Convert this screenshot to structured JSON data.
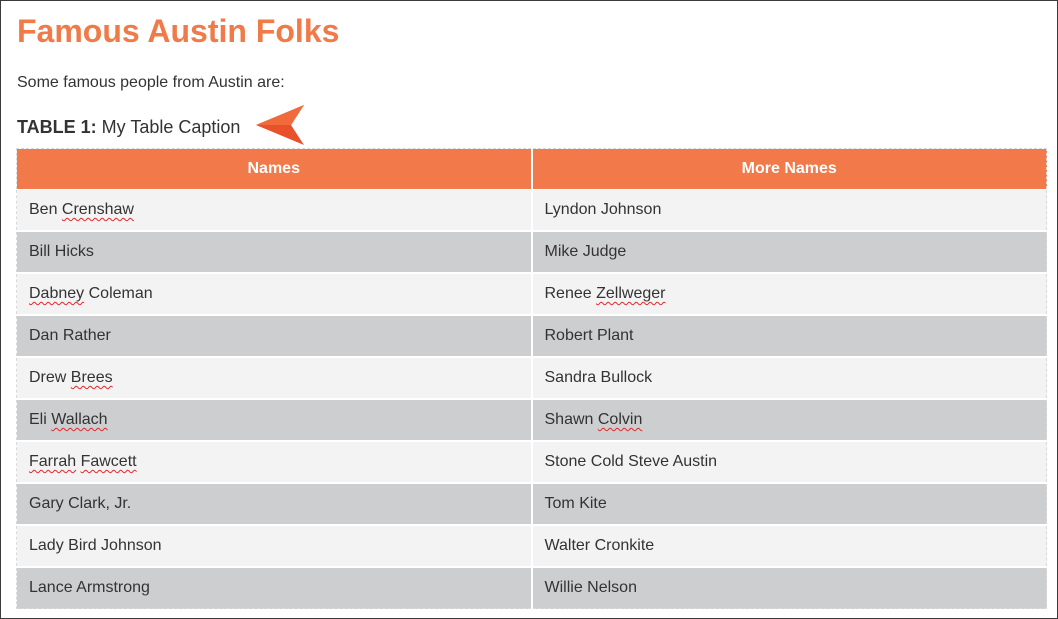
{
  "page": {
    "title": "Famous Austin Folks",
    "intro": "Some famous people from Austin are:"
  },
  "caption": {
    "label": "TABLE 1:",
    "text": "My Table Caption"
  },
  "colors": {
    "title": "#f07a48",
    "header_bg": "#f2794a",
    "row_odd": "#f3f3f3",
    "row_even": "#cdced0",
    "arrow": "#e8512a",
    "spellcheck": "#e0262b"
  },
  "icons": {
    "caption_pointer": "arrow-left-icon"
  },
  "table": {
    "columns": [
      "Names",
      "More Names"
    ],
    "rows": [
      [
        {
          "first": "Ben",
          "last": "Crenshaw",
          "flag_last": true
        },
        {
          "first": "Lyndon",
          "last": "Johnson",
          "flag_last": false
        }
      ],
      [
        {
          "first": "Bill",
          "last": "Hicks",
          "flag_last": false
        },
        {
          "first": "Mike",
          "last": "Judge",
          "flag_last": false
        }
      ],
      [
        {
          "first": "Dabney",
          "last": "Coleman",
          "flag_first": true
        },
        {
          "first": "Renee",
          "last": "Zellweger",
          "flag_last": true
        }
      ],
      [
        {
          "first": "Dan",
          "last": "Rather",
          "flag_last": false
        },
        {
          "first": "Robert",
          "last": "Plant",
          "flag_last": false
        }
      ],
      [
        {
          "first": "Drew",
          "last": "Brees",
          "flag_last": true
        },
        {
          "first": "Sandra",
          "last": "Bullock",
          "flag_last": false
        }
      ],
      [
        {
          "first": "Eli",
          "last": "Wallach",
          "flag_last": true
        },
        {
          "first": "Shawn",
          "last": "Colvin",
          "flag_last": true
        }
      ],
      [
        {
          "first": "Farrah",
          "last": "Fawcett",
          "flag_first": true,
          "flag_last": true
        },
        {
          "text": "Stone Cold Steve Austin"
        }
      ],
      [
        {
          "text": "Gary Clark, Jr."
        },
        {
          "first": "Tom",
          "last": "Kite",
          "flag_last": false
        }
      ],
      [
        {
          "text": "Lady Bird Johnson"
        },
        {
          "first": "Walter",
          "last": "Cronkite",
          "flag_last": false
        }
      ],
      [
        {
          "first": "Lance",
          "last": "Armstrong",
          "flag_last": false
        },
        {
          "first": "Willie",
          "last": "Nelson",
          "flag_last": false
        }
      ]
    ]
  }
}
